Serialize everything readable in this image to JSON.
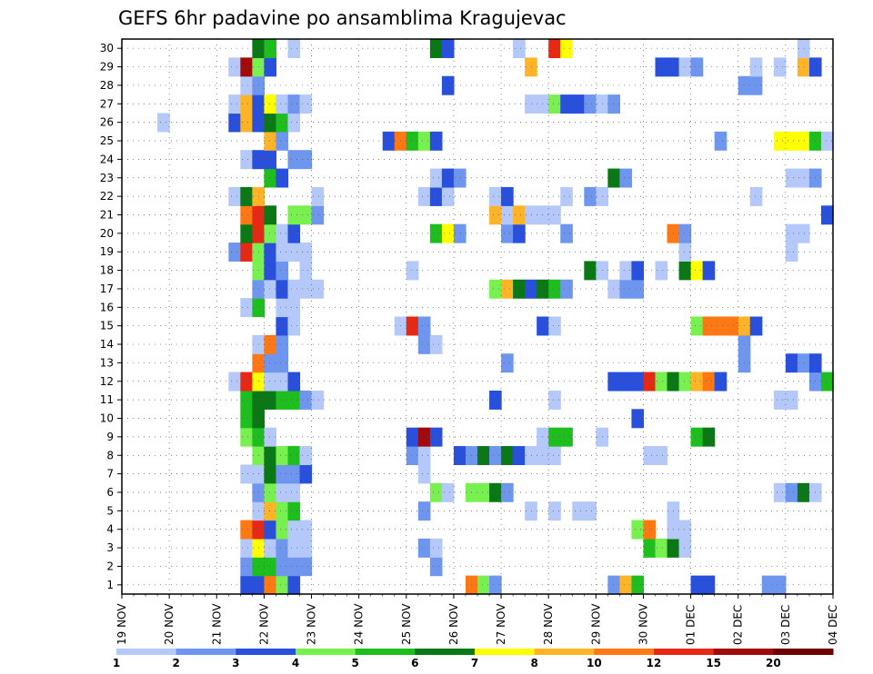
{
  "chart_data": {
    "type": "heatmap",
    "title": "GEFS 6hr padavine po ansamblima Kragujevac",
    "y_ticks": [
      "1",
      "2",
      "3",
      "4",
      "5",
      "6",
      "7",
      "8",
      "9",
      "10",
      "11",
      "12",
      "13",
      "14",
      "15",
      "16",
      "17",
      "18",
      "19",
      "20",
      "21",
      "22",
      "23",
      "24",
      "25",
      "26",
      "27",
      "28",
      "29",
      "30"
    ],
    "x_ticks": [
      "19 NOV",
      "20 NOV",
      "21 NOV",
      "22 NOV",
      "23 NOV",
      "24 NOV",
      "25 NOV",
      "26 NOV",
      "27 NOV",
      "28 NOV",
      "29 NOV",
      "30 NOV",
      "01 DEC",
      "02 DEC",
      "03 DEC",
      "04 DEC"
    ],
    "x_unit": "6-hourly steps from 19 NOV 00Z",
    "x_range": [
      0,
      60
    ],
    "y_range": [
      0.5,
      30.5
    ],
    "grid": true,
    "legend_position": "bottom",
    "color_scale": [
      {
        "color": "#b4c8fa",
        "from": 1,
        "to": 2
      },
      {
        "color": "#6e96ee",
        "from": 2,
        "to": 3
      },
      {
        "color": "#2850dc",
        "from": 3,
        "to": 4
      },
      {
        "color": "#78f050",
        "from": 4,
        "to": 5
      },
      {
        "color": "#1ebe1e",
        "from": 5,
        "to": 6
      },
      {
        "color": "#0a7814",
        "from": 6,
        "to": 7
      },
      {
        "color": "#ffff00",
        "from": 7,
        "to": 8
      },
      {
        "color": "#ffb428",
        "from": 8,
        "to": 10
      },
      {
        "color": "#ff7814",
        "from": 10,
        "to": 12
      },
      {
        "color": "#e62814",
        "from": 12,
        "to": 15
      },
      {
        "color": "#a00a0a",
        "from": 15,
        "to": 20
      },
      {
        "color": "#6e0000",
        "from": 20,
        "to": 25
      }
    ],
    "legend_labels": [
      "1",
      "2",
      "3",
      "4",
      "5",
      "6",
      "7",
      "8",
      "10",
      "12",
      "15",
      "20"
    ],
    "members": {
      "1": [
        [
          11,
          3
        ],
        [
          12,
          3
        ],
        [
          13,
          10
        ],
        [
          14,
          4
        ],
        [
          15,
          3
        ],
        [
          30,
          10
        ],
        [
          31,
          4
        ],
        [
          32,
          2
        ],
        [
          42,
          2
        ],
        [
          43,
          9
        ],
        [
          44,
          5
        ],
        [
          49,
          3
        ],
        [
          50,
          3
        ],
        [
          55,
          2
        ],
        [
          56,
          2
        ]
      ],
      "2": [
        [
          11,
          2
        ],
        [
          12,
          5
        ],
        [
          13,
          5
        ],
        [
          14,
          2
        ],
        [
          15,
          2
        ],
        [
          16,
          2
        ],
        [
          27,
          2
        ]
      ],
      "3": [
        [
          11,
          1
        ],
        [
          12,
          7
        ],
        [
          13,
          1
        ],
        [
          14,
          2
        ],
        [
          15,
          1
        ],
        [
          16,
          1
        ],
        [
          26,
          2
        ],
        [
          27,
          1
        ],
        [
          45,
          5
        ],
        [
          46,
          4
        ],
        [
          47,
          6
        ],
        [
          48,
          1
        ]
      ],
      "4": [
        [
          11,
          10
        ],
        [
          12,
          12
        ],
        [
          13,
          3
        ],
        [
          14,
          4
        ],
        [
          15,
          1
        ],
        [
          16,
          1
        ],
        [
          44,
          4
        ],
        [
          45,
          10
        ],
        [
          47,
          1
        ],
        [
          48,
          1
        ]
      ],
      "5": [
        [
          12,
          1
        ],
        [
          13,
          9
        ],
        [
          14,
          4
        ],
        [
          15,
          5
        ],
        [
          26,
          2
        ],
        [
          35,
          1
        ],
        [
          37,
          1
        ],
        [
          39,
          1
        ],
        [
          40,
          1
        ],
        [
          47,
          1
        ]
      ],
      "6": [
        [
          12,
          2
        ],
        [
          13,
          4
        ],
        [
          14,
          1
        ],
        [
          15,
          1
        ],
        [
          27,
          4
        ],
        [
          28,
          1
        ],
        [
          30,
          4
        ],
        [
          31,
          4
        ],
        [
          32,
          6
        ],
        [
          33,
          2
        ],
        [
          56,
          1
        ],
        [
          57,
          2
        ],
        [
          58,
          6
        ],
        [
          59,
          1
        ]
      ],
      "7": [
        [
          11,
          1
        ],
        [
          12,
          1
        ],
        [
          13,
          6
        ],
        [
          14,
          2
        ],
        [
          15,
          2
        ],
        [
          16,
          3
        ],
        [
          26,
          1
        ]
      ],
      "8": [
        [
          12,
          4
        ],
        [
          13,
          6
        ],
        [
          14,
          4
        ],
        [
          15,
          5
        ],
        [
          16,
          1
        ],
        [
          25,
          2
        ],
        [
          26,
          1
        ],
        [
          29,
          3
        ],
        [
          30,
          2
        ],
        [
          31,
          6
        ],
        [
          32,
          2
        ],
        [
          33,
          6
        ],
        [
          34,
          3
        ],
        [
          35,
          1
        ],
        [
          36,
          1
        ],
        [
          37,
          1
        ],
        [
          45,
          1
        ],
        [
          46,
          1
        ]
      ],
      "9": [
        [
          11,
          4
        ],
        [
          12,
          5
        ],
        [
          13,
          1
        ],
        [
          25,
          3
        ],
        [
          26,
          15
        ],
        [
          27,
          3
        ],
        [
          36,
          1
        ],
        [
          37,
          5
        ],
        [
          38,
          5
        ],
        [
          41,
          1
        ],
        [
          49,
          5
        ],
        [
          50,
          6
        ]
      ],
      "10": [
        [
          11,
          5
        ],
        [
          12,
          6
        ],
        [
          44,
          3
        ]
      ],
      "11": [
        [
          11,
          5
        ],
        [
          12,
          6
        ],
        [
          13,
          6
        ],
        [
          14,
          5
        ],
        [
          15,
          5
        ],
        [
          16,
          2
        ],
        [
          17,
          1
        ],
        [
          32,
          3
        ],
        [
          37,
          1
        ],
        [
          56,
          1
        ],
        [
          57,
          1
        ]
      ],
      "12": [
        [
          10,
          1
        ],
        [
          11,
          12
        ],
        [
          12,
          7
        ],
        [
          13,
          1
        ],
        [
          14,
          1
        ],
        [
          15,
          3
        ],
        [
          42,
          3
        ],
        [
          43,
          3
        ],
        [
          44,
          3
        ],
        [
          45,
          12
        ],
        [
          46,
          4
        ],
        [
          47,
          6
        ],
        [
          48,
          4
        ],
        [
          49,
          8
        ],
        [
          50,
          10
        ],
        [
          51,
          3
        ],
        [
          59,
          2
        ],
        [
          60,
          5
        ]
      ],
      "13": [
        [
          12,
          10
        ],
        [
          13,
          2
        ],
        [
          14,
          2
        ],
        [
          33,
          2
        ],
        [
          53,
          2
        ],
        [
          57,
          3
        ],
        [
          58,
          2
        ],
        [
          59,
          3
        ]
      ],
      "14": [
        [
          12,
          1
        ],
        [
          13,
          10
        ],
        [
          14,
          2
        ],
        [
          26,
          2
        ],
        [
          27,
          1
        ],
        [
          53,
          2
        ]
      ],
      "15": [
        [
          14,
          3
        ],
        [
          15,
          1
        ],
        [
          24,
          1
        ],
        [
          25,
          12
        ],
        [
          26,
          2
        ],
        [
          36,
          3
        ],
        [
          37,
          1
        ],
        [
          49,
          4
        ],
        [
          50,
          10
        ],
        [
          51,
          10
        ],
        [
          52,
          10
        ],
        [
          53,
          9
        ],
        [
          54,
          3
        ]
      ],
      "16": [
        [
          11,
          1
        ],
        [
          12,
          5
        ],
        [
          14,
          1
        ],
        [
          15,
          1
        ]
      ],
      "17": [
        [
          12,
          2
        ],
        [
          13,
          1
        ],
        [
          14,
          3
        ],
        [
          15,
          1
        ],
        [
          16,
          1
        ],
        [
          17,
          1
        ],
        [
          32,
          4
        ],
        [
          33,
          9
        ],
        [
          34,
          6
        ],
        [
          35,
          3
        ],
        [
          36,
          6
        ],
        [
          37,
          5
        ],
        [
          38,
          2
        ],
        [
          42,
          1
        ],
        [
          43,
          2
        ],
        [
          44,
          2
        ]
      ],
      "18": [
        [
          12,
          4
        ],
        [
          13,
          3
        ],
        [
          14,
          2
        ],
        [
          16,
          1
        ],
        [
          25,
          1
        ],
        [
          40,
          6
        ],
        [
          41,
          1
        ],
        [
          43,
          1
        ],
        [
          44,
          3
        ],
        [
          46,
          1
        ],
        [
          48,
          6
        ],
        [
          49,
          7
        ],
        [
          50,
          3
        ]
      ],
      "19": [
        [
          10,
          2
        ],
        [
          11,
          12
        ],
        [
          12,
          4
        ],
        [
          13,
          3
        ],
        [
          14,
          1
        ],
        [
          15,
          1
        ],
        [
          16,
          1
        ],
        [
          48,
          1
        ],
        [
          57,
          1
        ]
      ],
      "20": [
        [
          11,
          6
        ],
        [
          12,
          12
        ],
        [
          13,
          4
        ],
        [
          14,
          1
        ],
        [
          15,
          3
        ],
        [
          27,
          5
        ],
        [
          28,
          7
        ],
        [
          29,
          2
        ],
        [
          33,
          2
        ],
        [
          34,
          3
        ],
        [
          38,
          2
        ],
        [
          47,
          10
        ],
        [
          48,
          2
        ],
        [
          57,
          1
        ],
        [
          58,
          1
        ]
      ],
      "21": [
        [
          11,
          10
        ],
        [
          12,
          12
        ],
        [
          13,
          6
        ],
        [
          15,
          4
        ],
        [
          16,
          4
        ],
        [
          17,
          2
        ],
        [
          32,
          9
        ],
        [
          33,
          1
        ],
        [
          34,
          9
        ],
        [
          35,
          1
        ],
        [
          36,
          1
        ],
        [
          37,
          1
        ],
        [
          60,
          3
        ]
      ],
      "22": [
        [
          10,
          1
        ],
        [
          11,
          6
        ],
        [
          12,
          9
        ],
        [
          17,
          1
        ],
        [
          26,
          1
        ],
        [
          27,
          3
        ],
        [
          28,
          1
        ],
        [
          32,
          1
        ],
        [
          33,
          3
        ],
        [
          38,
          1
        ],
        [
          40,
          2
        ],
        [
          41,
          1
        ],
        [
          54,
          1
        ]
      ],
      "23": [
        [
          13,
          5
        ],
        [
          14,
          3
        ],
        [
          27,
          1
        ],
        [
          28,
          3
        ],
        [
          29,
          2
        ],
        [
          42,
          6
        ],
        [
          43,
          2
        ],
        [
          57,
          1
        ],
        [
          58,
          1
        ],
        [
          59,
          2
        ]
      ],
      "24": [
        [
          11,
          1
        ],
        [
          12,
          3
        ],
        [
          13,
          3
        ],
        [
          15,
          2
        ],
        [
          16,
          2
        ]
      ],
      "25": [
        [
          13,
          9
        ],
        [
          14,
          2
        ],
        [
          23,
          3
        ],
        [
          24,
          10
        ],
        [
          25,
          5
        ],
        [
          26,
          4
        ],
        [
          27,
          3
        ],
        [
          51,
          2
        ],
        [
          56,
          7
        ],
        [
          57,
          7
        ],
        [
          58,
          7
        ],
        [
          59,
          5
        ],
        [
          60,
          1
        ]
      ],
      "26": [
        [
          4,
          1
        ],
        [
          10,
          3
        ],
        [
          11,
          9
        ],
        [
          12,
          3
        ],
        [
          13,
          6
        ],
        [
          14,
          5
        ],
        [
          15,
          1
        ]
      ],
      "27": [
        [
          10,
          1
        ],
        [
          11,
          9
        ],
        [
          12,
          3
        ],
        [
          13,
          7
        ],
        [
          14,
          1
        ],
        [
          15,
          2
        ],
        [
          16,
          1
        ],
        [
          35,
          1
        ],
        [
          36,
          1
        ],
        [
          37,
          4
        ],
        [
          38,
          3
        ],
        [
          39,
          3
        ],
        [
          40,
          2
        ],
        [
          41,
          1
        ],
        [
          42,
          2
        ]
      ],
      "28": [
        [
          11,
          1
        ],
        [
          12,
          2
        ],
        [
          28,
          3
        ],
        [
          53,
          2
        ],
        [
          54,
          2
        ]
      ],
      "29": [
        [
          10,
          1
        ],
        [
          11,
          15
        ],
        [
          12,
          4
        ],
        [
          13,
          3
        ],
        [
          35,
          9
        ],
        [
          46,
          3
        ],
        [
          47,
          3
        ],
        [
          48,
          1
        ],
        [
          49,
          2
        ],
        [
          54,
          1
        ],
        [
          56,
          1
        ],
        [
          58,
          9
        ],
        [
          59,
          3
        ]
      ],
      "30": [
        [
          12,
          6
        ],
        [
          13,
          5
        ],
        [
          15,
          1
        ],
        [
          27,
          6
        ],
        [
          28,
          3
        ],
        [
          34,
          1
        ],
        [
          37,
          12
        ],
        [
          38,
          7
        ],
        [
          58,
          1
        ]
      ]
    }
  }
}
